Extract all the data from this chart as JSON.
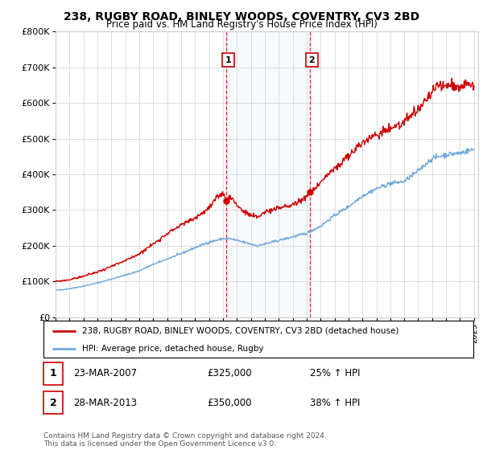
{
  "title": "238, RUGBY ROAD, BINLEY WOODS, COVENTRY, CV3 2BD",
  "subtitle": "Price paid vs. HM Land Registry's House Price Index (HPI)",
  "ylim": [
    0,
    800000
  ],
  "yticks": [
    0,
    100000,
    200000,
    300000,
    400000,
    500000,
    600000,
    700000,
    800000
  ],
  "ytick_labels": [
    "£0",
    "£100K",
    "£200K",
    "£300K",
    "£400K",
    "£500K",
    "£600K",
    "£700K",
    "£800K"
  ],
  "xlim": [
    1995,
    2025
  ],
  "sale1_x": 2007.22,
  "sale1_y": 325000,
  "sale2_x": 2013.23,
  "sale2_y": 350000,
  "legend_line1": "238, RUGBY ROAD, BINLEY WOODS, COVENTRY, CV3 2BD (detached house)",
  "legend_line2": "HPI: Average price, detached house, Rugby",
  "annotation1": [
    "1",
    "23-MAR-2007",
    "£325,000",
    "25% ↑ HPI"
  ],
  "annotation2": [
    "2",
    "28-MAR-2013",
    "£350,000",
    "38% ↑ HPI"
  ],
  "footer": "Contains HM Land Registry data © Crown copyright and database right 2024.\nThis data is licensed under the Open Government Licence v3.0.",
  "hpi_color": "#6fa8dc",
  "price_color": "#cc0000",
  "bg_highlight": "#dce6f1",
  "shade_x1": 2007.22,
  "shade_x2": 2013.23,
  "hpi_pts_x": [
    1995,
    1996,
    1997,
    1998,
    1999,
    2000,
    2001,
    2002,
    2003,
    2004,
    2005,
    2006,
    2007,
    2007.5,
    2008,
    2009,
    2009.5,
    2010,
    2011,
    2012,
    2013,
    2014,
    2015,
    2016,
    2017,
    2018,
    2019,
    2020,
    2021,
    2022,
    2023,
    2024,
    2025
  ],
  "hpi_pts_y": [
    75000,
    80000,
    87000,
    96000,
    107000,
    118000,
    130000,
    148000,
    163000,
    178000,
    195000,
    210000,
    220000,
    220000,
    215000,
    205000,
    200000,
    205000,
    215000,
    225000,
    235000,
    255000,
    285000,
    310000,
    340000,
    360000,
    375000,
    380000,
    410000,
    445000,
    455000,
    460000,
    470000
  ],
  "price_pts_x": [
    1995,
    1996,
    1997,
    1998,
    1999,
    2000,
    2001,
    2002,
    2003,
    2004,
    2005,
    2006,
    2006.5,
    2007,
    2007.22,
    2007.5,
    2008,
    2008.5,
    2009,
    2009.5,
    2010,
    2010.5,
    2011,
    2011.5,
    2012,
    2012.5,
    2013,
    2013.23,
    2013.5,
    2014,
    2015,
    2016,
    2017,
    2018,
    2019,
    2020,
    2021,
    2022,
    2022.5,
    2023,
    2023.5,
    2024,
    2024.5,
    2025
  ],
  "price_pts_y": [
    100000,
    105000,
    115000,
    127000,
    142000,
    158000,
    178000,
    205000,
    235000,
    258000,
    278000,
    305000,
    330000,
    350000,
    325000,
    340000,
    315000,
    295000,
    285000,
    280000,
    295000,
    300000,
    305000,
    310000,
    315000,
    325000,
    340000,
    350000,
    355000,
    380000,
    415000,
    450000,
    490000,
    510000,
    530000,
    545000,
    580000,
    630000,
    650000,
    645000,
    655000,
    640000,
    660000,
    650000
  ],
  "hpi_noise_seed": 42,
  "price_noise_seed": 99
}
